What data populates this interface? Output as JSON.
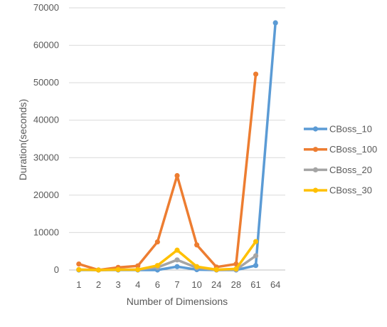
{
  "chart_data": {
    "type": "line",
    "title": "",
    "xlabel": "Number of Dimensions",
    "ylabel": "Duration(seconds)",
    "ylim": [
      0,
      70000
    ],
    "yticks": [
      "0",
      "10000",
      "20000",
      "30000",
      "40000",
      "50000",
      "60000",
      "70000"
    ],
    "categories": [
      "1",
      "2",
      "3",
      "4",
      "6",
      "7",
      "10",
      "24",
      "28",
      "61",
      "64"
    ],
    "grid": true,
    "legend_position": "right",
    "series": [
      {
        "name": "CBoss_10",
        "color": "#5B9BD5",
        "values": [
          0,
          0,
          0,
          0,
          0,
          900,
          100,
          0,
          0,
          1200,
          66000
        ]
      },
      {
        "name": "CBoss_100",
        "color": "#ED7D31",
        "values": [
          1600,
          0,
          700,
          1100,
          7500,
          25200,
          6700,
          800,
          1600,
          52300,
          null
        ]
      },
      {
        "name": "CBoss_20",
        "color": "#A5A5A5",
        "values": [
          100,
          0,
          100,
          100,
          700,
          2700,
          600,
          0,
          100,
          3800,
          null
        ]
      },
      {
        "name": "CBoss_30",
        "color": "#FFC000",
        "values": [
          100,
          0,
          100,
          100,
          1200,
          5300,
          900,
          100,
          300,
          7600,
          null
        ]
      }
    ]
  }
}
